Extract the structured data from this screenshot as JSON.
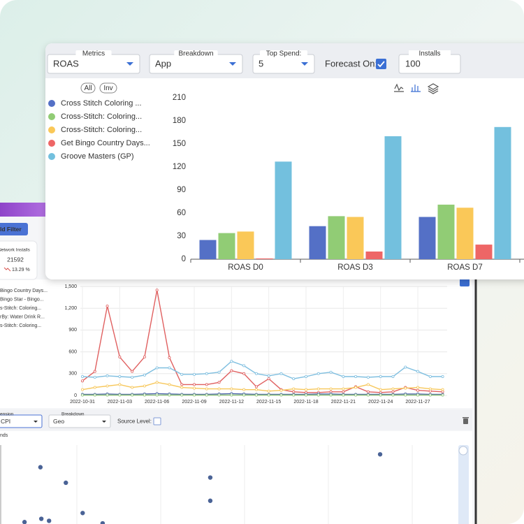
{
  "chart_data": [
    {
      "type": "bar",
      "categories": [
        "ROAS D0",
        "ROAS D3",
        "ROAS D7"
      ],
      "series": [
        {
          "name": "Cross Stitch Coloring ...",
          "color": "#5470c6",
          "values": [
            25,
            43,
            55
          ]
        },
        {
          "name": "Cross-Stitch: Coloring...",
          "color": "#91cc75",
          "values": [
            34,
            56,
            71
          ]
        },
        {
          "name": "Cross-Stitch: Coloring...",
          "color": "#fac858",
          "values": [
            36,
            55,
            67
          ]
        },
        {
          "name": "Get Bingo Country Days...",
          "color": "#ee6666",
          "values": [
            1,
            10,
            19
          ]
        },
        {
          "name": "Groove Masters (GP)",
          "color": "#73c0de",
          "values": [
            127,
            160,
            172
          ]
        }
      ],
      "ylim": [
        0,
        210
      ],
      "yticks": [
        0,
        30,
        60,
        90,
        120,
        150,
        180,
        210
      ]
    },
    {
      "type": "line",
      "categories": [
        "2022-10-31",
        null,
        null,
        "2022-11-03",
        null,
        null,
        "2022-11-06",
        null,
        null,
        "2022-11-09",
        null,
        null,
        "2022-11-12",
        null,
        null,
        "2022-11-15",
        null,
        null,
        "2022-11-18",
        null,
        null,
        "2022-11-21",
        null,
        null,
        "2022-11-24",
        null,
        null,
        "2022-11-27",
        null,
        null
      ],
      "series": [
        {
          "name": "Bingo Country Days...",
          "color": "#e06060",
          "values": [
            200,
            330,
            1230,
            530,
            330,
            530,
            1450,
            520,
            150,
            150,
            150,
            180,
            340,
            300,
            120,
            230,
            80,
            50,
            40,
            40,
            50,
            50,
            120,
            50,
            40,
            50,
            110,
            70,
            60,
            50
          ]
        },
        {
          "name": "Bingo Star - Bingo...",
          "color": "#4a63a8",
          "values": [
            15,
            15,
            20,
            15,
            15,
            20,
            25,
            20,
            15,
            15,
            15,
            20,
            25,
            20,
            15,
            15,
            15,
            15,
            15,
            20,
            20,
            15,
            15,
            15,
            15,
            15,
            20,
            20,
            15,
            15
          ]
        },
        {
          "name": "s-Stitch: Coloring...",
          "color": "#f7c75a",
          "values": [
            80,
            110,
            130,
            150,
            110,
            130,
            180,
            150,
            110,
            100,
            90,
            90,
            90,
            80,
            80,
            60,
            70,
            90,
            80,
            90,
            90,
            90,
            110,
            150,
            80,
            90,
            100,
            110,
            90,
            80
          ]
        },
        {
          "name": "rBy: Water Drink R...",
          "color": "#8fc47a",
          "values": [
            5,
            5,
            5,
            5,
            5,
            5,
            5,
            5,
            5,
            5,
            5,
            5,
            5,
            5,
            5,
            5,
            5,
            5,
            5,
            5,
            5,
            5,
            5,
            5,
            5,
            5,
            5,
            5,
            5,
            5
          ]
        },
        {
          "name": "s-Stitch: Coloring...",
          "color": "#7fbfe0",
          "values": [
            260,
            250,
            270,
            260,
            250,
            280,
            380,
            380,
            290,
            290,
            300,
            320,
            470,
            410,
            300,
            270,
            300,
            230,
            260,
            300,
            320,
            260,
            260,
            250,
            260,
            260,
            390,
            330,
            260,
            260
          ]
        }
      ],
      "ylim": [
        0,
        1500
      ],
      "yticks": [
        0,
        300,
        600,
        900,
        {
          "value": 1200,
          "label": "1,200"
        },
        {
          "value": 1500,
          "label": "1,500"
        }
      ]
    },
    {
      "type": "scatter",
      "title": "nds",
      "series": [
        {
          "color": "#4a6396",
          "x": [
            8.9,
            14.5,
            46.3,
            46.3,
            83.7,
            5.4,
            9.1,
            10.8,
            18.2,
            22.6
          ],
          "y": [
            67.7,
            49.2,
            55.4,
            27.7,
            83.1,
            2.3,
            6.2,
            3.8,
            13.1,
            0.8
          ]
        }
      ],
      "xlim": [
        0,
        100
      ],
      "ylim": [
        0,
        100
      ]
    }
  ],
  "ui": {
    "controls": [
      {
        "label": "Metrics",
        "value": "ROAS"
      },
      {
        "label": "Breakdown",
        "value": "App"
      },
      {
        "label": "Top Spend:",
        "value": "5"
      }
    ],
    "forecast": "Forecast On:",
    "installs": {
      "label": "Installs",
      "value": "100"
    },
    "legend_buttons": [
      "All",
      "Inv"
    ],
    "filter_button": "ld Filter",
    "kpi": {
      "label": "Network Installs",
      "value": "21592",
      "change": "13.29 %"
    },
    "lower_controls": [
      {
        "label": "ension",
        "value": "CPI"
      },
      {
        "label": "Breakdown",
        "value": "Geo"
      }
    ],
    "source_level": "Source Level:"
  }
}
